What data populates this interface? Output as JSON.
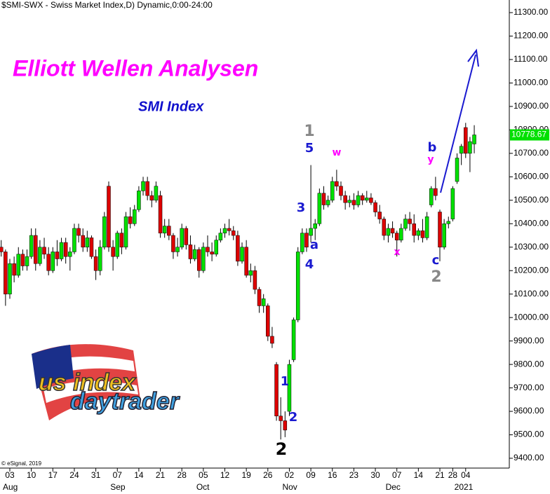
{
  "chart_data": {
    "type": "candlestick",
    "header": "$SMI-SWX - Swiss Market Index,D) Dynamic,0:00-24:00",
    "title": "Elliott Wellen Analysen",
    "subtitle": "SMI Index",
    "copyright": "© eSignal, 2019",
    "logo_top": "us index",
    "logo_bottom": "daytrader",
    "up_color": "#00e000",
    "down_color": "#dd0000",
    "ylim": [
      9400,
      11300
    ],
    "yticks": [
      {
        "value": 9400,
        "label": "9400.00"
      },
      {
        "value": 9500,
        "label": "9500.00"
      },
      {
        "value": 9600,
        "label": "9600.00"
      },
      {
        "value": 9700,
        "label": "9700.00"
      },
      {
        "value": 9800,
        "label": "9800.00"
      },
      {
        "value": 9900,
        "label": "9900.00"
      },
      {
        "value": 10000,
        "label": "10000.00"
      },
      {
        "value": 10100,
        "label": "10100.00"
      },
      {
        "value": 10200,
        "label": "10200.00"
      },
      {
        "value": 10300,
        "label": "10300.00"
      },
      {
        "value": 10400,
        "label": "10400.00"
      },
      {
        "value": 10500,
        "label": "10500.00"
      },
      {
        "value": 10600,
        "label": "10600.00"
      },
      {
        "value": 10700,
        "label": "10700.00"
      },
      {
        "value": 10800,
        "label": "10800.00"
      },
      {
        "value": 10900,
        "label": "10900.00"
      },
      {
        "value": 11000,
        "label": "11000.00"
      },
      {
        "value": 11100,
        "label": "11100.00"
      },
      {
        "value": 11200,
        "label": "11200.00"
      },
      {
        "value": 11300,
        "label": "11300.00"
      }
    ],
    "last_value": 10778.67,
    "categories": [
      null,
      null,
      "03",
      null,
      null,
      null,
      null,
      "10",
      null,
      null,
      null,
      null,
      "17",
      null,
      null,
      null,
      null,
      "24",
      null,
      null,
      null,
      null,
      "31",
      null,
      null,
      null,
      null,
      "07",
      null,
      null,
      null,
      null,
      "14",
      null,
      null,
      null,
      null,
      "21",
      null,
      null,
      null,
      null,
      "28",
      null,
      null,
      null,
      null,
      "05",
      null,
      null,
      null,
      null,
      "12",
      null,
      null,
      null,
      null,
      "19",
      null,
      null,
      null,
      null,
      "26",
      null,
      null,
      null,
      null,
      "02",
      null,
      null,
      null,
      null,
      "09",
      null,
      null,
      null,
      null,
      "16",
      null,
      null,
      null,
      null,
      "23",
      null,
      null,
      null,
      null,
      "30",
      null,
      null,
      null,
      null,
      "07",
      null,
      null,
      null,
      null,
      "14",
      null,
      null,
      null,
      null,
      "21",
      null,
      null,
      "28",
      null,
      null,
      "04",
      null,
      null
    ],
    "months": [
      null,
      null,
      "Aug",
      null,
      null,
      null,
      null,
      null,
      null,
      null,
      null,
      null,
      null,
      null,
      null,
      null,
      null,
      null,
      null,
      null,
      null,
      null,
      null,
      null,
      null,
      null,
      null,
      "Sep",
      null,
      null,
      null,
      null,
      null,
      null,
      null,
      null,
      null,
      null,
      null,
      null,
      null,
      null,
      null,
      null,
      null,
      null,
      null,
      "Oct",
      null,
      null,
      null,
      null,
      null,
      null,
      null,
      null,
      null,
      null,
      null,
      null,
      null,
      null,
      null,
      null,
      null,
      null,
      null,
      "Nov",
      null,
      null,
      null,
      null,
      null,
      null,
      null,
      null,
      null,
      null,
      null,
      null,
      null,
      null,
      null,
      null,
      null,
      null,
      null,
      null,
      null,
      null,
      null,
      "Dec",
      null,
      null,
      null,
      null,
      null,
      null,
      null,
      null,
      null,
      null,
      null,
      null,
      null,
      null,
      null,
      "2021",
      null,
      null
    ],
    "ohlc": [
      [
        10300,
        10330,
        10260,
        10280
      ],
      [
        10280,
        10290,
        10050,
        10100
      ],
      [
        10100,
        10250,
        10080,
        10230
      ],
      [
        10230,
        10260,
        10150,
        10180
      ],
      [
        10180,
        10300,
        10170,
        10270
      ],
      [
        10270,
        10290,
        10200,
        10220
      ],
      [
        10220,
        10290,
        10200,
        10260
      ],
      [
        10260,
        10380,
        10250,
        10350
      ],
      [
        10350,
        10380,
        10200,
        10230
      ],
      [
        10230,
        10330,
        10220,
        10300
      ],
      [
        10300,
        10340,
        10250,
        10270
      ],
      [
        10270,
        10300,
        10180,
        10200
      ],
      [
        10200,
        10300,
        10190,
        10280
      ],
      [
        10280,
        10330,
        10220,
        10250
      ],
      [
        10250,
        10340,
        10240,
        10320
      ],
      [
        10320,
        10340,
        10230,
        10260
      ],
      [
        10260,
        10300,
        10200,
        10280
      ],
      [
        10280,
        10400,
        10270,
        10380
      ],
      [
        10380,
        10400,
        10320,
        10350
      ],
      [
        10350,
        10380,
        10280,
        10300
      ],
      [
        10300,
        10370,
        10280,
        10340
      ],
      [
        10340,
        10350,
        10250,
        10260
      ],
      [
        10260,
        10290,
        10160,
        10200
      ],
      [
        10200,
        10330,
        10180,
        10300
      ],
      [
        10300,
        10450,
        10290,
        10430
      ],
      [
        10560,
        10580,
        10280,
        10300
      ],
      [
        10300,
        10330,
        10200,
        10260
      ],
      [
        10260,
        10370,
        10250,
        10360
      ],
      [
        10360,
        10380,
        10270,
        10300
      ],
      [
        10300,
        10450,
        10290,
        10430
      ],
      [
        10430,
        10470,
        10380,
        10400
      ],
      [
        10400,
        10480,
        10390,
        10460
      ],
      [
        10460,
        10560,
        10450,
        10540
      ],
      [
        10540,
        10600,
        10520,
        10580
      ],
      [
        10580,
        10600,
        10500,
        10520
      ],
      [
        10520,
        10540,
        10470,
        10500
      ],
      [
        10500,
        10580,
        10490,
        10560
      ],
      [
        10520,
        10540,
        10340,
        10360
      ],
      [
        10360,
        10420,
        10340,
        10390
      ],
      [
        10390,
        10420,
        10330,
        10350
      ],
      [
        10350,
        10360,
        10250,
        10280
      ],
      [
        10280,
        10340,
        10260,
        10300
      ],
      [
        10300,
        10400,
        10290,
        10380
      ],
      [
        10380,
        10390,
        10290,
        10310
      ],
      [
        10310,
        10350,
        10230,
        10250
      ],
      [
        10250,
        10310,
        10240,
        10290
      ],
      [
        10290,
        10300,
        10170,
        10200
      ],
      [
        10200,
        10320,
        10190,
        10300
      ],
      [
        10300,
        10350,
        10260,
        10280
      ],
      [
        10280,
        10320,
        10240,
        10270
      ],
      [
        10270,
        10350,
        10260,
        10330
      ],
      [
        10330,
        10380,
        10320,
        10360
      ],
      [
        10360,
        10400,
        10340,
        10380
      ],
      [
        10380,
        10420,
        10350,
        10370
      ],
      [
        10370,
        10390,
        10330,
        10350
      ],
      [
        10350,
        10370,
        10220,
        10240
      ],
      [
        10240,
        10320,
        10230,
        10300
      ],
      [
        10300,
        10330,
        10170,
        10180
      ],
      [
        10180,
        10230,
        10150,
        10200
      ],
      [
        10200,
        10220,
        10100,
        10120
      ],
      [
        10120,
        10130,
        10020,
        10050
      ],
      [
        10050,
        10100,
        10020,
        10080
      ],
      [
        10050,
        10060,
        9900,
        9920
      ],
      [
        9920,
        9960,
        9870,
        9890
      ],
      [
        9800,
        9810,
        9560,
        9580
      ],
      [
        9580,
        9660,
        9480,
        9560
      ],
      [
        9560,
        9600,
        9490,
        9520
      ],
      [
        9600,
        9820,
        9580,
        9800
      ],
      [
        9820,
        10000,
        9810,
        9990
      ],
      [
        9990,
        10300,
        9980,
        10280
      ],
      [
        10280,
        10380,
        10270,
        10360
      ],
      [
        10360,
        10380,
        10280,
        10300
      ],
      [
        10350,
        10650,
        10320,
        10380
      ],
      [
        10380,
        10420,
        10330,
        10400
      ],
      [
        10400,
        10550,
        10390,
        10530
      ],
      [
        10530,
        10560,
        10460,
        10480
      ],
      [
        10480,
        10520,
        10470,
        10500
      ],
      [
        10500,
        10600,
        10490,
        10580
      ],
      [
        10580,
        10630,
        10540,
        10560
      ],
      [
        10560,
        10580,
        10500,
        10520
      ],
      [
        10520,
        10540,
        10460,
        10490
      ],
      [
        10490,
        10520,
        10470,
        10500
      ],
      [
        10500,
        10530,
        10460,
        10480
      ],
      [
        10480,
        10540,
        10470,
        10520
      ],
      [
        10520,
        10530,
        10480,
        10500
      ],
      [
        10500,
        10540,
        10490,
        10510
      ],
      [
        10510,
        10530,
        10480,
        10490
      ],
      [
        10490,
        10500,
        10430,
        10450
      ],
      [
        10450,
        10480,
        10400,
        10420
      ],
      [
        10420,
        10430,
        10330,
        10350
      ],
      [
        10350,
        10400,
        10320,
        10380
      ],
      [
        10380,
        10410,
        10340,
        10360
      ],
      [
        10360,
        10370,
        10260,
        10330
      ],
      [
        10330,
        10400,
        10320,
        10380
      ],
      [
        10380,
        10440,
        10370,
        10420
      ],
      [
        10420,
        10450,
        10370,
        10400
      ],
      [
        10400,
        10440,
        10320,
        10350
      ],
      [
        10350,
        10380,
        10330,
        10370
      ],
      [
        10370,
        10420,
        10320,
        10340
      ],
      [
        10340,
        10450,
        10330,
        10430
      ],
      [
        10480,
        10560,
        10470,
        10550
      ],
      [
        10550,
        10600,
        10500,
        10520
      ],
      [
        10450,
        10460,
        10240,
        10300
      ],
      [
        10300,
        10420,
        10290,
        10400
      ],
      [
        10400,
        10430,
        10380,
        10410
      ],
      [
        10420,
        10560,
        10410,
        10550
      ],
      [
        10580,
        10700,
        10570,
        10680
      ],
      [
        10700,
        10740,
        10650,
        10730
      ],
      [
        10810,
        10830,
        10680,
        10700
      ],
      [
        10700,
        10770,
        10620,
        10750
      ],
      [
        10740,
        10820,
        10700,
        10778.67
      ]
    ],
    "wave_labels": [
      "1",
      "5",
      "w",
      "3",
      "a",
      "4",
      "x",
      "b",
      "y",
      "c",
      "2",
      "1",
      "2",
      "2"
    ]
  }
}
